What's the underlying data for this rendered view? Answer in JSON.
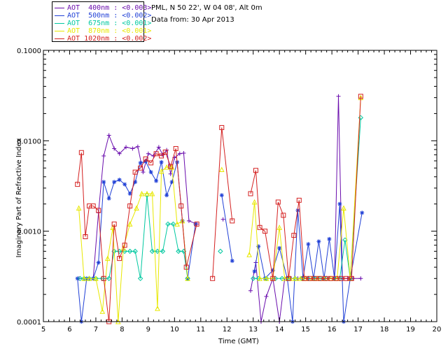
{
  "site": {
    "line1": "PML, N 50 22', W 04 08', Alt 0m",
    "line2": "Data from: 30 Apr 2013"
  },
  "legend": [
    {
      "label": "AOT  400nm : <0.003>",
      "color": "#6a0dad"
    },
    {
      "label": "AOT  500nm : <0.002>",
      "color": "#1f3fd6"
    },
    {
      "label": "AOT  675nm : <0.001>",
      "color": "#00c8a0"
    },
    {
      "label": "AOT  870nm : <0.001>",
      "color": "#e8e800"
    },
    {
      "label": "AOT 1020nm : <0.002>",
      "color": "#d42020"
    }
  ],
  "chart_data": {
    "type": "line",
    "ylabel": "Imaginary Part of Refractive Index",
    "xlabel": "Time (GMT)",
    "xlim": [
      5,
      20
    ],
    "ylim": [
      0.0001,
      0.1
    ],
    "yscale": "log",
    "x_ticks": [
      "5",
      "6",
      "7",
      "8",
      "9",
      "10",
      "11",
      "12",
      "13",
      "14",
      "15",
      "16",
      "17",
      "18",
      "19",
      "20"
    ],
    "y_ticks": [
      "0.0001",
      "0.0010",
      "0.0100",
      "0.1000"
    ],
    "y_tick_values": [
      0.0001,
      0.001,
      0.01,
      0.1
    ],
    "series": [
      {
        "name": "AOT 400nm",
        "color": "#6a0dad",
        "marker": "plus",
        "x": [
          6.35,
          6.55,
          6.75,
          6.9,
          7.1,
          7.3,
          7.5,
          7.7,
          7.9,
          8.15,
          8.4,
          8.6,
          8.8,
          9.0,
          9.2,
          9.4,
          9.55,
          9.7,
          9.85,
          10.0,
          10.2,
          10.35,
          10.55,
          10.85,
          11.85,
          12.9,
          13.1,
          13.3,
          13.5,
          13.75,
          14.0,
          14.2,
          14.45,
          14.7,
          14.9,
          15.1,
          15.3,
          15.5,
          15.75,
          15.9,
          16.1,
          16.25,
          16.4,
          16.6,
          16.8,
          17.1
        ],
        "y": [
          0.0003,
          0.0003,
          0.0003,
          0.0003,
          0.0016,
          0.0068,
          0.0115,
          0.0082,
          0.0072,
          0.0085,
          0.0082,
          0.0086,
          0.0045,
          0.0072,
          0.0068,
          0.0085,
          0.007,
          0.0079,
          0.0043,
          0.0065,
          0.0072,
          0.0073,
          0.0013,
          0.0012,
          0.00135,
          0.00022,
          0.00045,
          0.0001,
          0.00019,
          0.0003,
          9e-05,
          0.0003,
          0.0003,
          0.0003,
          0.0003,
          0.0003,
          0.0003,
          0.0003,
          0.0003,
          0.0003,
          0.0003,
          0.031,
          0.0003,
          0.0003,
          0.0003,
          0.0003
        ]
      },
      {
        "name": "AOT 500nm",
        "color": "#1f3fd6",
        "marker": "star",
        "x": [
          6.3,
          6.45,
          6.65,
          6.9,
          7.1,
          7.3,
          7.5,
          7.7,
          7.9,
          8.1,
          8.3,
          8.5,
          8.7,
          8.9,
          9.1,
          9.3,
          9.5,
          9.7,
          9.9,
          10.1,
          10.3,
          10.5,
          10.8,
          11.8,
          12.2,
          13.05,
          13.2,
          13.45,
          13.75,
          14.0,
          14.3,
          14.5,
          14.7,
          14.9,
          15.1,
          15.3,
          15.5,
          15.7,
          15.9,
          16.1,
          16.3,
          16.45,
          16.7,
          17.15
        ],
        "y": [
          0.0003,
          0.0001,
          0.0003,
          0.0003,
          0.00045,
          0.0035,
          0.0023,
          0.0035,
          0.0037,
          0.0033,
          0.0026,
          0.0035,
          0.0057,
          0.0059,
          0.0045,
          0.0036,
          0.0058,
          0.0025,
          0.0035,
          0.0058,
          0.0013,
          0.0003,
          0.0012,
          0.0025,
          0.00047,
          0.00036,
          0.00068,
          0.0003,
          0.00037,
          0.00065,
          0.0003,
          0.0001,
          0.0017,
          0.0003,
          0.00072,
          0.0003,
          0.00077,
          0.0003,
          0.00082,
          0.0003,
          0.002,
          0.0001,
          0.0003,
          0.0016
        ]
      },
      {
        "name": "AOT 675nm",
        "color": "#00c8a0",
        "marker": "diamond",
        "x": [
          6.4,
          6.55,
          6.75,
          7.0,
          7.25,
          7.5,
          7.7,
          7.9,
          8.1,
          8.3,
          8.5,
          8.7,
          8.95,
          9.15,
          9.35,
          9.55,
          9.75,
          9.95,
          10.15,
          10.35,
          10.5,
          11.75,
          13.0,
          13.2,
          13.5,
          13.85,
          14.1,
          14.35,
          14.6,
          14.85,
          15.1,
          15.35,
          15.55,
          15.8,
          16.1,
          16.3,
          16.5,
          16.7,
          17.1
        ],
        "y": [
          0.0003,
          0.0003,
          0.0003,
          0.0003,
          0.0003,
          0.0003,
          0.0006,
          0.0006,
          0.0006,
          0.0006,
          0.0006,
          0.0003,
          0.0025,
          0.0006,
          0.0006,
          0.0006,
          0.0012,
          0.0012,
          0.0006,
          0.0006,
          0.0003,
          0.0006,
          0.0003,
          0.0003,
          0.0003,
          0.0003,
          0.0003,
          0.0003,
          0.0003,
          0.0003,
          0.0003,
          0.0003,
          0.0003,
          0.0003,
          0.0003,
          0.0003,
          0.0008,
          0.0003,
          0.018
        ]
      },
      {
        "name": "AOT 870nm",
        "color": "#e8e800",
        "marker": "triangle",
        "x": [
          6.35,
          6.55,
          6.75,
          7.0,
          7.25,
          7.45,
          7.65,
          7.85,
          8.05,
          8.3,
          8.55,
          8.75,
          8.95,
          9.15,
          9.35,
          9.5,
          9.7,
          9.9,
          10.1,
          10.3,
          10.5,
          11.8,
          12.85,
          13.05,
          13.25,
          13.5,
          13.75,
          14.0,
          14.2,
          14.4,
          14.6,
          14.8,
          15.0,
          15.25,
          15.45,
          15.7,
          15.95,
          16.2,
          16.45,
          16.7,
          17.1
        ],
        "y": [
          0.0018,
          0.0003,
          0.0003,
          0.0003,
          0.00013,
          0.0005,
          0.0011,
          0.0001,
          0.00065,
          0.0012,
          0.0018,
          0.0026,
          0.0026,
          0.0026,
          0.00014,
          0.0046,
          0.0051,
          0.0051,
          0.0012,
          0.0013,
          0.0003,
          0.0048,
          0.00055,
          0.0021,
          0.0003,
          0.0003,
          0.0003,
          0.0011,
          0.0003,
          0.0003,
          0.0003,
          0.0003,
          0.0003,
          0.0003,
          0.0003,
          0.0003,
          0.0003,
          0.0003,
          0.0018,
          0.0003,
          0.03
        ]
      },
      {
        "name": "AOT 1020nm",
        "color": "#d42020",
        "marker": "square",
        "x": [
          6.3,
          6.45,
          6.6,
          6.75,
          6.9,
          7.1,
          7.3,
          7.5,
          7.7,
          7.9,
          8.1,
          8.3,
          8.5,
          8.7,
          8.9,
          9.1,
          9.3,
          9.5,
          9.65,
          9.85,
          10.05,
          10.25,
          10.45,
          10.85,
          11.45,
          11.8,
          12.2,
          12.9,
          13.1,
          13.25,
          13.45,
          13.75,
          13.95,
          14.15,
          14.35,
          14.55,
          14.75,
          14.95,
          15.15,
          15.35,
          15.55,
          15.75,
          15.95,
          16.15,
          16.35,
          16.55,
          16.75,
          17.1
        ],
        "y": [
          0.0033,
          0.0074,
          0.00087,
          0.0019,
          0.0019,
          0.0017,
          0.0003,
          0.0001,
          0.0012,
          0.0005,
          0.0007,
          0.0019,
          0.0045,
          0.005,
          0.0063,
          0.0057,
          0.0072,
          0.0068,
          0.0075,
          0.0052,
          0.0082,
          0.0019,
          0.0004,
          0.0012,
          0.0003,
          0.014,
          0.0013,
          0.0026,
          0.0047,
          0.0011,
          0.001,
          0.0003,
          0.0021,
          0.0015,
          0.0003,
          0.0009,
          0.0022,
          0.0003,
          0.0003,
          0.0003,
          0.0003,
          0.0003,
          0.0003,
          0.0003,
          0.0003,
          0.0003,
          0.0003,
          0.031
        ]
      }
    ]
  }
}
